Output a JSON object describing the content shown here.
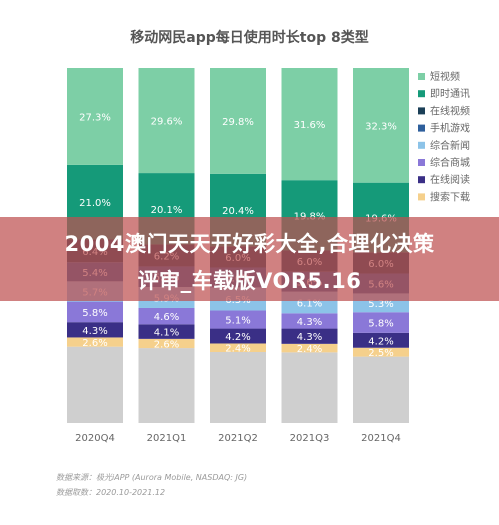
{
  "chart_data": {
    "type": "bar",
    "stacked": true,
    "title": "移动网民app每日使用时长top 8类型",
    "xlabel": "",
    "ylabel": "",
    "ylim": [
      0,
      100
    ],
    "categories": [
      "2020Q4",
      "2021Q1",
      "2021Q2",
      "2021Q3",
      "2021Q4"
    ],
    "series": [
      {
        "name": "搜索下载",
        "color": "#f5d08c",
        "values": [
          2.6,
          2.6,
          2.4,
          2.4,
          2.5
        ]
      },
      {
        "name": "在线阅读",
        "color": "#3a2f86",
        "values": [
          4.3,
          4.1,
          4.2,
          4.3,
          4.2
        ]
      },
      {
        "name": "综合商城",
        "color": "#8a78d8",
        "values": [
          5.8,
          4.6,
          5.1,
          4.3,
          5.8
        ]
      },
      {
        "name": "综合新闻",
        "color": "#8cc3e8",
        "values": [
          5.7,
          5.9,
          6.5,
          6.1,
          5.3
        ]
      },
      {
        "name": "手机游戏",
        "color": "#2e5f9c",
        "values": [
          5.4,
          5.8,
          5.6,
          5.6,
          5.6
        ]
      },
      {
        "name": "在线视频",
        "color": "#1b3f57",
        "values": [
          6.4,
          6.2,
          6.0,
          6.0,
          6.0
        ]
      },
      {
        "name": "即时通讯",
        "color": "#159a79",
        "values": [
          21.0,
          20.1,
          20.4,
          19.8,
          19.6
        ]
      },
      {
        "name": "短视频",
        "color": "#7dcfa6",
        "values": [
          27.3,
          29.6,
          29.8,
          31.6,
          32.3
        ]
      }
    ],
    "remainder_color": "#cfcfcf",
    "legend_order": [
      "短视频",
      "即时通讯",
      "在线视频",
      "手机游戏",
      "综合新闻",
      "综合商城",
      "在线阅读",
      "搜索下载"
    ],
    "legend_placement": "right",
    "grid": false
  },
  "footer": {
    "source": "数据来源：极光iAPP (Aurora Mobile, NASDAQ: JG)",
    "period": "数据取数：2020.10-2021.12"
  },
  "banner": {
    "line1": "2004澳门天天开好彩大全,合理化决策",
    "line2": "评审_车载版VOR5.16"
  }
}
